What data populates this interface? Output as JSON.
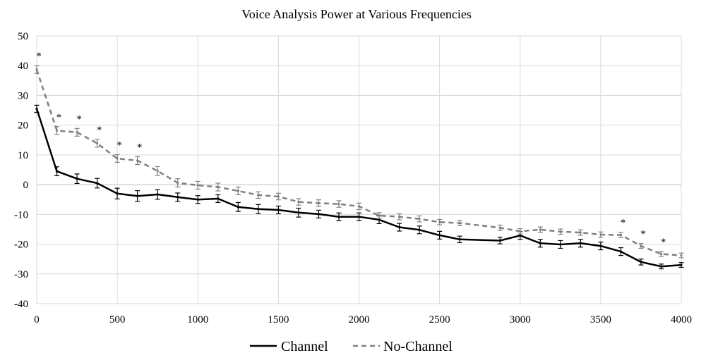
{
  "chart_data": {
    "type": "line",
    "title": "Voice Analysis Power at Various Frequencies",
    "xlabel": "",
    "ylabel": "",
    "xlim": [
      0,
      4000
    ],
    "ylim": [
      -40,
      50
    ],
    "x_ticks": [
      "0",
      "500",
      "1000",
      "1500",
      "2000",
      "2500",
      "3000",
      "3500",
      "4000"
    ],
    "y_ticks": [
      "50",
      "40",
      "30",
      "20",
      "10",
      "0",
      "-10",
      "-20",
      "-30",
      "-40"
    ],
    "grid": true,
    "legend_position": "bottom",
    "x": [
      0,
      125,
      250,
      375,
      500,
      625,
      750,
      875,
      1000,
      1125,
      1250,
      1375,
      1500,
      1625,
      1750,
      1875,
      2000,
      2125,
      2250,
      2375,
      2500,
      2625,
      2875,
      3000,
      3125,
      3250,
      3375,
      3500,
      3625,
      3750,
      3875,
      4000
    ],
    "series": [
      {
        "name": "Channel",
        "color": "#000000",
        "dash": "solid",
        "values": [
          25.5,
          4.5,
          2,
          0.5,
          -3,
          -3.8,
          -3.3,
          -4.2,
          -5,
          -4.7,
          -7.5,
          -8.2,
          -8.5,
          -9.4,
          -9.9,
          -10.8,
          -10.8,
          -11.8,
          -14.3,
          -15.2,
          -17,
          -18.4,
          -18.8,
          -17.1,
          -19.7,
          -20.1,
          -19.7,
          -20.6,
          -22.5,
          -26,
          -27.5,
          -27
        ],
        "error": [
          1.2,
          1.5,
          1.6,
          1.6,
          1.8,
          1.8,
          1.6,
          1.4,
          1.3,
          1.3,
          1.5,
          1.5,
          1.3,
          1.5,
          1.3,
          1.3,
          1.3,
          1.3,
          1.3,
          1.3,
          1.3,
          1.1,
          1.1,
          1.3,
          1.3,
          1.3,
          1.3,
          1.3,
          1.3,
          1,
          0.8,
          0.8
        ]
      },
      {
        "name": "No-Channel",
        "color": "#808080",
        "dash": "dashed",
        "values": [
          38.7,
          18.2,
          17.6,
          13.9,
          8.8,
          8.1,
          4.6,
          0.6,
          -0.2,
          -0.8,
          -2.1,
          -3.5,
          -4,
          -5.8,
          -6.2,
          -6.5,
          -7.3,
          -10.4,
          -10.8,
          -11.5,
          -12.6,
          -12.9,
          -14.5,
          -15.7,
          -15.1,
          -15.8,
          -16.1,
          -16.8,
          -16.9,
          -20.6,
          -23.3,
          -23.8
        ],
        "error": [
          1.3,
          1.3,
          1.3,
          1.3,
          1.3,
          1.3,
          1.5,
          1.4,
          1.3,
          1.3,
          1.3,
          1.1,
          1.1,
          1.1,
          1.1,
          1.1,
          1.1,
          1,
          1,
          1,
          0.9,
          0.9,
          0.9,
          0.9,
          0.9,
          0.9,
          0.9,
          0.9,
          0.9,
          0.8,
          0.8,
          0.8
        ]
      }
    ],
    "significance_marker": "*",
    "significant_x": [
      0,
      125,
      250,
      375,
      500,
      625,
      3625,
      3750,
      3875
    ]
  }
}
